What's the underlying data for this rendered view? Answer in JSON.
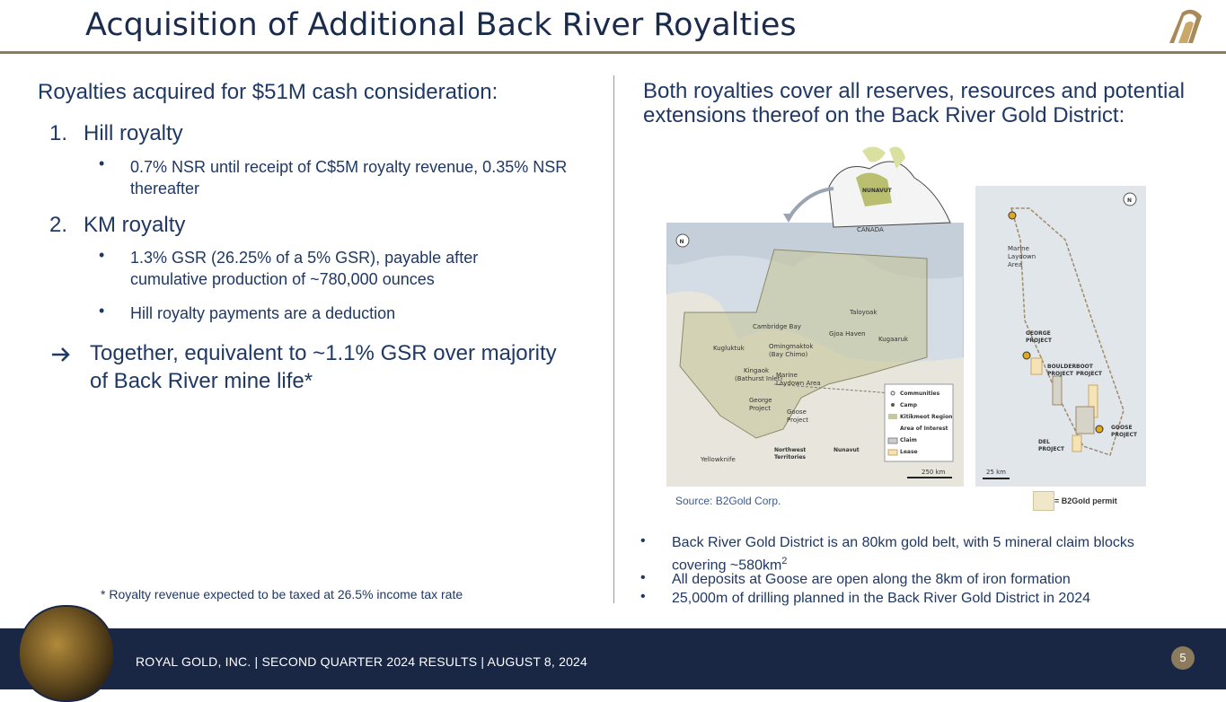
{
  "title": "Acquisition of Additional Back River Royalties",
  "left": {
    "heading": "Royalties acquired for $51M cash consideration:",
    "item1_num": "1.",
    "item1_label": "Hill royalty",
    "item1_bullet": "0.7% NSR until receipt of C$5M royalty revenue, 0.35% NSR thereafter",
    "item2_num": "2.",
    "item2_label": "KM royalty",
    "item2_bullet1": "1.3% GSR (26.25% of a 5% GSR), payable after cumulative production of ~780,000 ounces",
    "item2_bullet2": "Hill royalty payments are a deduction",
    "conclusion": "Together, equivalent to ~1.1% GSR over majority of Back River mine life*",
    "footnote": "*  Royalty revenue expected to be taxed at 26.5% income tax rate"
  },
  "right": {
    "heading": "Both royalties cover all reserves, resources and potential extensions thereof on the Back River Gold District:",
    "source": "Source: B2Gold Corp.",
    "bullet1_main": "Back River Gold District is an 80km gold belt, with 5 mineral claim blocks covering ~580km",
    "bullet1_sup": "2",
    "bullet2": "All deposits at Goose are open along the 8km of iron formation",
    "bullet3": "25,000m of drilling planned in the Back River Gold District in 2024"
  },
  "map": {
    "inset_nunavut": "NUNAVUT",
    "inset_canada": "CANADA",
    "north": "N",
    "places": {
      "cambridge_bay": "Cambridge Bay",
      "taloyoak": "Taloyoak",
      "gjoa_haven": "Gjoa Haven",
      "kugaaruk": "Kugaaruk",
      "kugluktuk": "Kugluktuk",
      "omingmaktok_1": "Omingmaktok",
      "omingmaktok_2": "(Bay Chimo)",
      "kingaok_1": "Kingaok",
      "kingaok_2": "(Bathurst Inlet)",
      "marine_1": "Marine",
      "marine_2": "Laydown Area",
      "george_1": "George",
      "george_2": "Project",
      "goose_1": "Goose",
      "goose_2": "Project",
      "nwt_1": "Northwest",
      "nwt_2": "Territories",
      "nunavut": "Nunavut",
      "yellowknife": "Yellowknife"
    },
    "legend": {
      "communities": "Communities",
      "camp": "Camp",
      "kitikmeot": "Kitikmeot Region",
      "aoi": "Area of Interest",
      "claim": "Claim",
      "lease": "Lease"
    },
    "scale_left": "250 km",
    "detail": {
      "marine_1": "Marine",
      "marine_2": "Laydown",
      "marine_3": "Area",
      "george_1": "GEORGE",
      "george_2": "PROJECT",
      "boulder_1": "BOULDER",
      "boulder_2": "PROJECT",
      "boot_1": "BOOT",
      "boot_2": "PROJECT",
      "goose_1": "GOOSE",
      "goose_2": "PROJECT",
      "del_1": "DEL",
      "del_2": "PROJECT",
      "scale": "25 km",
      "permit": "= B2Gold permit"
    }
  },
  "footer": {
    "text": "ROYAL GOLD, INC.   |   SECOND QUARTER 2024 RESULTS  |   AUGUST 8, 2024",
    "page": "5"
  },
  "colors": {
    "navy": "#1a2744",
    "text": "#1f3864",
    "gold": "#8b7a5c"
  }
}
